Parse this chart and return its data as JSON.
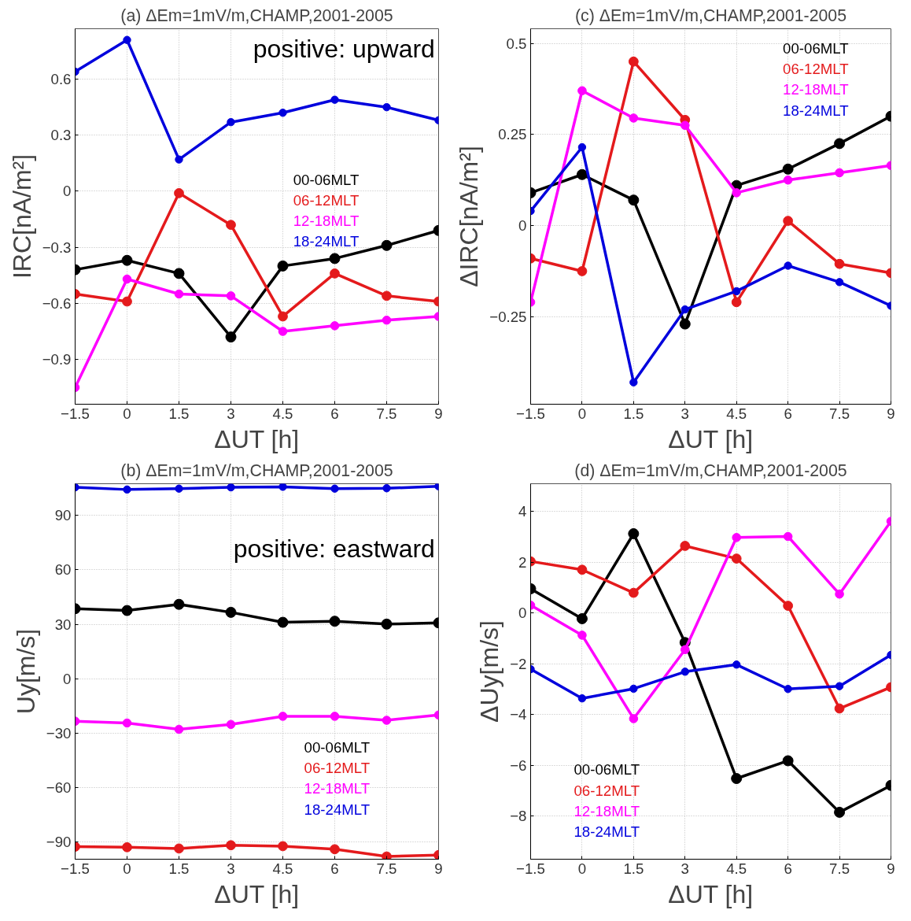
{
  "chart_data": [
    {
      "type": "line",
      "title": "(a) ΔEm=1mV/m,CHAMP,2001-2005",
      "xlabel": "ΔUT [h]",
      "ylabel": "IRC[nA/m²]",
      "x": [
        -1.5,
        0,
        1.5,
        3,
        4.5,
        6,
        7.5,
        9
      ],
      "xlim": [
        -1.5,
        9
      ],
      "xticks": [
        -1.5,
        0,
        1.5,
        3,
        4.5,
        6,
        7.5,
        9
      ],
      "ylim": [
        -1.14,
        0.87
      ],
      "yticks": [
        -0.9,
        -0.6,
        -0.3,
        0,
        0.3,
        0.6
      ],
      "grid": true,
      "marker": "circle",
      "line_style": "solid",
      "legend": "right",
      "annotations": [
        "positive: upward"
      ],
      "series": [
        {
          "name": "00-06MLT",
          "color": "#000000",
          "values": [
            -0.42,
            -0.37,
            -0.44,
            -0.78,
            -0.4,
            -0.36,
            -0.29,
            -0.21
          ]
        },
        {
          "name": "06-12MLT",
          "color": "#e41a1c",
          "values": [
            -0.55,
            -0.59,
            -0.01,
            -0.18,
            -0.67,
            -0.44,
            -0.56,
            -0.59
          ]
        },
        {
          "name": "12-18MLT",
          "color": "#ff00ff",
          "values": [
            -1.05,
            -0.47,
            -0.55,
            -0.56,
            -0.75,
            -0.72,
            -0.69,
            -0.67
          ]
        },
        {
          "name": "18-24MLT",
          "color": "#0000dd",
          "values": [
            0.64,
            0.81,
            0.17,
            0.37,
            0.42,
            0.49,
            0.45,
            0.38
          ]
        }
      ]
    },
    {
      "type": "line",
      "title": "(c) ΔEm=1mV/m,CHAMP,2001-2005",
      "xlabel": "ΔUT [h]",
      "ylabel": "ΔIRC[nA/m²]",
      "x": [
        -1.5,
        0,
        1.5,
        3,
        4.5,
        6,
        7.5,
        9
      ],
      "xlim": [
        -1.5,
        9
      ],
      "xticks": [
        -1.5,
        0,
        1.5,
        3,
        4.5,
        6,
        7.5,
        9
      ],
      "ylim": [
        -0.49,
        0.54
      ],
      "yticks": [
        -0.25,
        0,
        0.25,
        0.5
      ],
      "grid": true,
      "marker": "circle",
      "line_style": "solid",
      "legend": "top right",
      "series": [
        {
          "name": "00-06MLT",
          "color": "#000000",
          "values": [
            0.09,
            0.14,
            0.07,
            -0.27,
            0.11,
            0.155,
            0.225,
            0.3
          ]
        },
        {
          "name": "06-12MLT",
          "color": "#e41a1c",
          "values": [
            -0.09,
            -0.125,
            0.45,
            0.29,
            -0.21,
            0.013,
            -0.105,
            -0.13
          ]
        },
        {
          "name": "12-18MLT",
          "color": "#ff00ff",
          "values": [
            -0.21,
            0.37,
            0.295,
            0.275,
            0.09,
            0.125,
            0.145,
            0.165
          ]
        },
        {
          "name": "18-24MLT",
          "color": "#0000dd",
          "values": [
            0.04,
            0.215,
            -0.43,
            -0.23,
            -0.18,
            -0.11,
            -0.155,
            -0.22
          ]
        }
      ]
    },
    {
      "type": "line",
      "title": "(b) ΔEm=1mV/m,CHAMP,2001-2005",
      "xlabel": "ΔUT [h]",
      "ylabel": "Uy[m/s]",
      "x": [
        -1.5,
        0,
        1.5,
        3,
        4.5,
        6,
        7.5,
        9
      ],
      "xlim": [
        -1.5,
        9
      ],
      "xticks": [
        -1.5,
        0,
        1.5,
        3,
        4.5,
        6,
        7.5,
        9
      ],
      "ylim": [
        -99.5,
        107.5
      ],
      "yticks": [
        -90,
        -60,
        -30,
        0,
        30,
        60,
        90
      ],
      "grid": true,
      "marker": "circle",
      "line_style": "solid",
      "legend": "bottom right",
      "annotations": [
        "positive: eastward"
      ],
      "series": [
        {
          "name": "00-06MLT",
          "color": "#000000",
          "values": [
            38.6,
            37.6,
            41.0,
            36.6,
            31.1,
            31.7,
            30.1,
            30.8
          ]
        },
        {
          "name": "06-12MLT",
          "color": "#e41a1c",
          "values": [
            -92.6,
            -92.9,
            -93.6,
            -91.8,
            -92.3,
            -94.0,
            -98.0,
            -97.2
          ]
        },
        {
          "name": "12-18MLT",
          "color": "#ff00ff",
          "values": [
            -23.4,
            -24.4,
            -27.9,
            -25.2,
            -20.7,
            -20.7,
            -22.9,
            -20.0
          ]
        },
        {
          "name": "18-24MLT",
          "color": "#0000dd",
          "values": [
            105.5,
            104.3,
            104.8,
            105.5,
            105.8,
            104.8,
            105.0,
            106.1
          ]
        }
      ]
    },
    {
      "type": "line",
      "title": "(d) ΔEm=1mV/m,CHAMP,2001-2005",
      "xlabel": "ΔUT [h]",
      "ylabel": "ΔUy[m/s]",
      "x": [
        -1.5,
        0,
        1.5,
        3,
        4.5,
        6,
        7.5,
        9
      ],
      "xlim": [
        -1.5,
        9
      ],
      "xticks": [
        -1.5,
        0,
        1.5,
        3,
        4.5,
        6,
        7.5,
        9
      ],
      "ylim": [
        -9.7,
        5.1
      ],
      "yticks": [
        -8,
        -6,
        -4,
        -2,
        0,
        2,
        4
      ],
      "grid": true,
      "marker": "circle",
      "line_style": "solid",
      "legend": "bottom left",
      "series": [
        {
          "name": "00-06MLT",
          "color": "#000000",
          "values": [
            0.96,
            -0.22,
            3.13,
            -1.16,
            -6.52,
            -5.82,
            -7.85,
            -6.79
          ]
        },
        {
          "name": "06-12MLT",
          "color": "#e41a1c",
          "values": [
            2.04,
            1.71,
            0.8,
            2.65,
            2.15,
            0.29,
            -3.76,
            -2.92
          ]
        },
        {
          "name": "12-18MLT",
          "color": "#ff00ff",
          "values": [
            0.31,
            -0.87,
            -4.16,
            -1.44,
            2.98,
            3.02,
            0.75,
            3.62
          ]
        },
        {
          "name": "18-24MLT",
          "color": "#0000dd",
          "values": [
            -2.21,
            -3.36,
            -2.98,
            -2.31,
            -2.03,
            -2.99,
            -2.88,
            -1.65
          ]
        }
      ]
    }
  ]
}
